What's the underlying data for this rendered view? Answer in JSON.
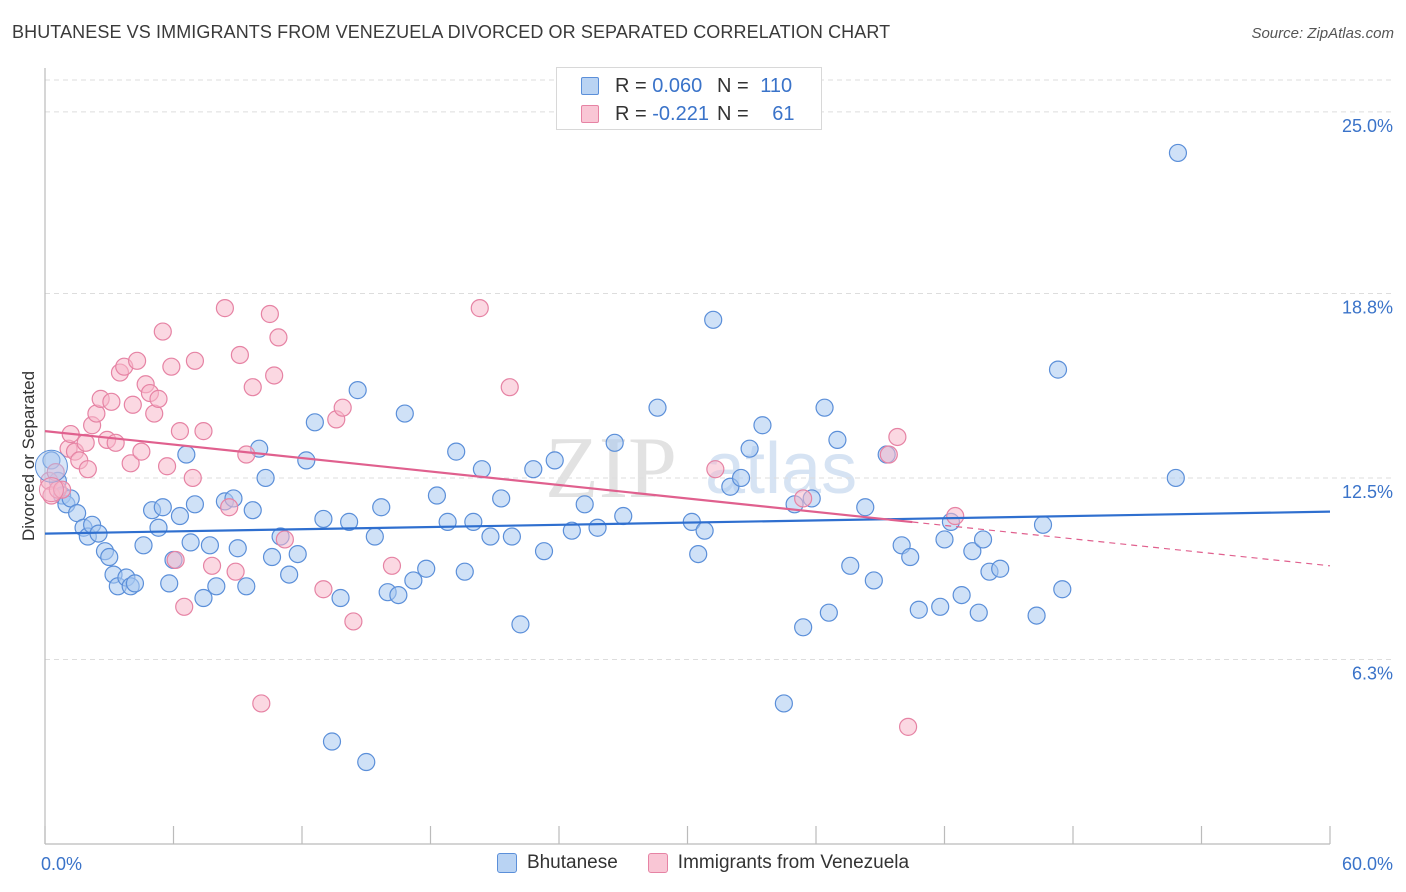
{
  "title": "BHUTANESE VS IMMIGRANTS FROM VENEZUELA DIVORCED OR SEPARATED CORRELATION CHART",
  "source": "Source: ZipAtlas.com",
  "watermark": {
    "zip": "ZIP",
    "atlas": "atlas"
  },
  "legend": {
    "rows": [
      {
        "r_label": "R =",
        "r_value": "0.060",
        "n_label": "N =",
        "n_value": "110"
      },
      {
        "r_label": "R =",
        "r_value": "-0.221",
        "n_label": "N =",
        "n_value": "61"
      }
    ]
  },
  "colors": {
    "blue_fill": "#a8c8f0",
    "blue_stroke": "#5b8fd9",
    "blue_line": "#2f6fcf",
    "pink_fill": "#f7b8cb",
    "pink_stroke": "#e683a4",
    "pink_line": "#e0608e",
    "axis_label": "#3a73c9",
    "grid": "#dddddd"
  },
  "chart_data": {
    "type": "scatter",
    "title": "BHUTANESE VS IMMIGRANTS FROM VENEZUELA DIVORCED OR SEPARATED CORRELATION CHART",
    "xlabel": "",
    "ylabel": "Divorced or Separated",
    "xlim": [
      0,
      60
    ],
    "ylim": [
      0,
      26.5
    ],
    "x_tick_labels": [
      {
        "value": 0,
        "label": "0.0%"
      },
      {
        "value": 60,
        "label": "60.0%"
      }
    ],
    "y_ticks": [
      {
        "value": 6.3,
        "label": "6.3%"
      },
      {
        "value": 12.5,
        "label": "12.5%"
      },
      {
        "value": 18.8,
        "label": "18.8%"
      },
      {
        "value": 25.0,
        "label": "25.0%"
      }
    ],
    "grid": true,
    "legend_position": "top-center",
    "series": [
      {
        "name": "Bhutanese",
        "trend": {
          "x0": 0,
          "y0": 10.6,
          "x1": 60,
          "y1": 11.35,
          "dashed_from": null
        },
        "points": [
          [
            0.3,
            13.1
          ],
          [
            0.6,
            12.4
          ],
          [
            0.8,
            11.9
          ],
          [
            1.0,
            11.6
          ],
          [
            1.2,
            11.8
          ],
          [
            1.5,
            11.3
          ],
          [
            1.8,
            10.8
          ],
          [
            2.0,
            10.5
          ],
          [
            2.2,
            10.9
          ],
          [
            2.5,
            10.6
          ],
          [
            2.8,
            10.0
          ],
          [
            3.0,
            9.8
          ],
          [
            3.2,
            9.2
          ],
          [
            3.4,
            8.8
          ],
          [
            3.8,
            9.1
          ],
          [
            4.0,
            8.8
          ],
          [
            4.2,
            8.9
          ],
          [
            4.6,
            10.2
          ],
          [
            5.0,
            11.4
          ],
          [
            5.3,
            10.8
          ],
          [
            5.5,
            11.5
          ],
          [
            5.8,
            8.9
          ],
          [
            6.0,
            9.7
          ],
          [
            6.3,
            11.2
          ],
          [
            6.6,
            13.3
          ],
          [
            6.8,
            10.3
          ],
          [
            7.0,
            11.6
          ],
          [
            7.4,
            8.4
          ],
          [
            7.7,
            10.2
          ],
          [
            8.0,
            8.8
          ],
          [
            8.4,
            11.7
          ],
          [
            8.8,
            11.8
          ],
          [
            9.0,
            10.1
          ],
          [
            9.4,
            8.8
          ],
          [
            9.7,
            11.4
          ],
          [
            10.0,
            13.5
          ],
          [
            10.3,
            12.5
          ],
          [
            10.6,
            9.8
          ],
          [
            11.0,
            10.5
          ],
          [
            11.4,
            9.2
          ],
          [
            11.8,
            9.9
          ],
          [
            12.2,
            13.1
          ],
          [
            12.6,
            14.4
          ],
          [
            13.0,
            11.1
          ],
          [
            13.4,
            3.5
          ],
          [
            13.8,
            8.4
          ],
          [
            14.2,
            11.0
          ],
          [
            14.6,
            15.5
          ],
          [
            15.0,
            2.8
          ],
          [
            15.4,
            10.5
          ],
          [
            15.7,
            11.5
          ],
          [
            16.0,
            8.6
          ],
          [
            16.5,
            8.5
          ],
          [
            16.8,
            14.7
          ],
          [
            17.2,
            9.0
          ],
          [
            17.8,
            9.4
          ],
          [
            18.3,
            11.9
          ],
          [
            18.8,
            11.0
          ],
          [
            19.2,
            13.4
          ],
          [
            19.6,
            9.3
          ],
          [
            20.0,
            11.0
          ],
          [
            20.4,
            12.8
          ],
          [
            20.8,
            10.5
          ],
          [
            21.3,
            11.8
          ],
          [
            21.8,
            10.5
          ],
          [
            22.2,
            7.5
          ],
          [
            22.8,
            12.8
          ],
          [
            23.3,
            10.0
          ],
          [
            23.8,
            13.1
          ],
          [
            24.6,
            10.7
          ],
          [
            25.2,
            11.6
          ],
          [
            25.8,
            10.8
          ],
          [
            26.6,
            13.7
          ],
          [
            27.0,
            11.2
          ],
          [
            28.6,
            14.9
          ],
          [
            30.2,
            11.0
          ],
          [
            30.5,
            9.9
          ],
          [
            30.8,
            10.7
          ],
          [
            31.2,
            17.9
          ],
          [
            32.0,
            12.2
          ],
          [
            32.5,
            12.5
          ],
          [
            32.9,
            13.5
          ],
          [
            33.5,
            14.3
          ],
          [
            34.5,
            4.8
          ],
          [
            35.0,
            11.6
          ],
          [
            35.4,
            7.4
          ],
          [
            35.8,
            11.8
          ],
          [
            36.4,
            14.9
          ],
          [
            36.6,
            7.9
          ],
          [
            37.0,
            13.8
          ],
          [
            37.6,
            9.5
          ],
          [
            38.3,
            11.5
          ],
          [
            38.7,
            9.0
          ],
          [
            39.3,
            13.3
          ],
          [
            40.0,
            10.2
          ],
          [
            40.4,
            9.8
          ],
          [
            40.8,
            8.0
          ],
          [
            41.8,
            8.1
          ],
          [
            42.0,
            10.4
          ],
          [
            42.3,
            11.0
          ],
          [
            42.8,
            8.5
          ],
          [
            43.3,
            10.0
          ],
          [
            43.6,
            7.9
          ],
          [
            43.8,
            10.4
          ],
          [
            44.1,
            9.3
          ],
          [
            44.6,
            9.4
          ],
          [
            46.3,
            7.8
          ],
          [
            46.6,
            10.9
          ],
          [
            47.3,
            16.2
          ],
          [
            47.5,
            8.7
          ],
          [
            52.8,
            12.5
          ],
          [
            52.9,
            23.6
          ]
        ]
      },
      {
        "name": "Immigrants from Venezuela",
        "trend": {
          "x0": 0,
          "y0": 14.1,
          "x1": 60,
          "y1": 9.5,
          "dashed_from": 40.5
        },
        "points": [
          [
            0.2,
            12.4
          ],
          [
            0.3,
            11.9
          ],
          [
            0.5,
            12.7
          ],
          [
            0.6,
            12.1
          ],
          [
            0.8,
            12.1
          ],
          [
            1.1,
            13.5
          ],
          [
            1.2,
            14.0
          ],
          [
            1.4,
            13.4
          ],
          [
            1.6,
            13.1
          ],
          [
            1.9,
            13.7
          ],
          [
            2.0,
            12.8
          ],
          [
            2.2,
            14.3
          ],
          [
            2.4,
            14.7
          ],
          [
            2.6,
            15.2
          ],
          [
            2.9,
            13.8
          ],
          [
            3.1,
            15.1
          ],
          [
            3.3,
            13.7
          ],
          [
            3.5,
            16.1
          ],
          [
            3.7,
            16.3
          ],
          [
            4.0,
            13.0
          ],
          [
            4.1,
            15.0
          ],
          [
            4.3,
            16.5
          ],
          [
            4.5,
            13.4
          ],
          [
            4.7,
            15.7
          ],
          [
            4.9,
            15.4
          ],
          [
            5.1,
            14.7
          ],
          [
            5.3,
            15.2
          ],
          [
            5.5,
            17.5
          ],
          [
            5.7,
            12.9
          ],
          [
            5.9,
            16.3
          ],
          [
            6.1,
            9.7
          ],
          [
            6.3,
            14.1
          ],
          [
            6.5,
            8.1
          ],
          [
            6.9,
            12.5
          ],
          [
            7.0,
            16.5
          ],
          [
            7.4,
            14.1
          ],
          [
            7.8,
            9.5
          ],
          [
            8.4,
            18.3
          ],
          [
            8.6,
            11.5
          ],
          [
            8.9,
            9.3
          ],
          [
            9.1,
            16.7
          ],
          [
            9.4,
            13.3
          ],
          [
            9.7,
            15.6
          ],
          [
            10.1,
            4.8
          ],
          [
            10.5,
            18.1
          ],
          [
            10.7,
            16.0
          ],
          [
            10.9,
            17.3
          ],
          [
            11.2,
            10.4
          ],
          [
            13.0,
            8.7
          ],
          [
            13.6,
            14.5
          ],
          [
            13.9,
            14.9
          ],
          [
            14.4,
            7.6
          ],
          [
            16.2,
            9.5
          ],
          [
            20.3,
            18.3
          ],
          [
            21.7,
            15.6
          ],
          [
            31.3,
            12.8
          ],
          [
            35.4,
            11.8
          ],
          [
            39.4,
            13.3
          ],
          [
            39.8,
            13.9
          ],
          [
            40.3,
            4.0
          ],
          [
            42.5,
            11.2
          ]
        ]
      }
    ]
  }
}
